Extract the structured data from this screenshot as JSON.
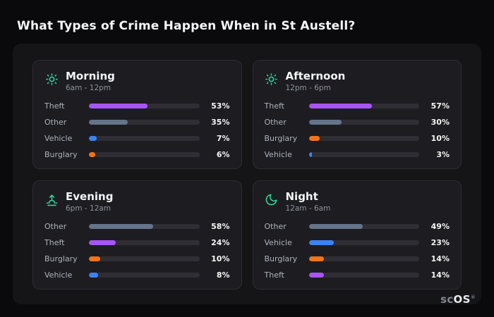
{
  "page": {
    "title": "What Types of Crime Happen When in St Austell?"
  },
  "brand": {
    "name": "scOS",
    "name_prefix": "sc",
    "name_suffix": "OS",
    "registered": "®"
  },
  "colors": {
    "theft": "#a855f7",
    "other": "#64748b",
    "vehicle": "#3b82f6",
    "burglary": "#f97316",
    "icon_accent": "#34d399",
    "bar_track": "#2e2e34"
  },
  "chart_data": [
    {
      "type": "bar",
      "title": "Morning",
      "subtitle": "6am - 12pm",
      "icon": "sun-icon",
      "categories": [
        "Theft",
        "Other",
        "Vehicle",
        "Burglary"
      ],
      "values": [
        53,
        35,
        7,
        6
      ],
      "value_labels": [
        "53%",
        "35%",
        "7%",
        "6%"
      ],
      "bar_colors": [
        "#a855f7",
        "#64748b",
        "#3b82f6",
        "#f97316"
      ],
      "xlim": [
        0,
        100
      ],
      "unit": "%"
    },
    {
      "type": "bar",
      "title": "Afternoon",
      "subtitle": "12pm - 6pm",
      "icon": "sun-icon",
      "categories": [
        "Theft",
        "Other",
        "Burglary",
        "Vehicle"
      ],
      "values": [
        57,
        30,
        10,
        3
      ],
      "value_labels": [
        "57%",
        "30%",
        "10%",
        "3%"
      ],
      "bar_colors": [
        "#a855f7",
        "#64748b",
        "#f97316",
        "#3b82f6"
      ],
      "xlim": [
        0,
        100
      ],
      "unit": "%"
    },
    {
      "type": "bar",
      "title": "Evening",
      "subtitle": "6pm - 12am",
      "icon": "sunset-icon",
      "categories": [
        "Other",
        "Theft",
        "Burglary",
        "Vehicle"
      ],
      "values": [
        58,
        24,
        10,
        8
      ],
      "value_labels": [
        "58%",
        "24%",
        "10%",
        "8%"
      ],
      "bar_colors": [
        "#64748b",
        "#a855f7",
        "#f97316",
        "#3b82f6"
      ],
      "xlim": [
        0,
        100
      ],
      "unit": "%"
    },
    {
      "type": "bar",
      "title": "Night",
      "subtitle": "12am - 6am",
      "icon": "moon-icon",
      "categories": [
        "Other",
        "Vehicle",
        "Burglary",
        "Theft"
      ],
      "values": [
        49,
        23,
        14,
        14
      ],
      "value_labels": [
        "49%",
        "23%",
        "14%",
        "14%"
      ],
      "bar_colors": [
        "#64748b",
        "#3b82f6",
        "#f97316",
        "#a855f7"
      ],
      "xlim": [
        0,
        100
      ],
      "unit": "%"
    }
  ]
}
